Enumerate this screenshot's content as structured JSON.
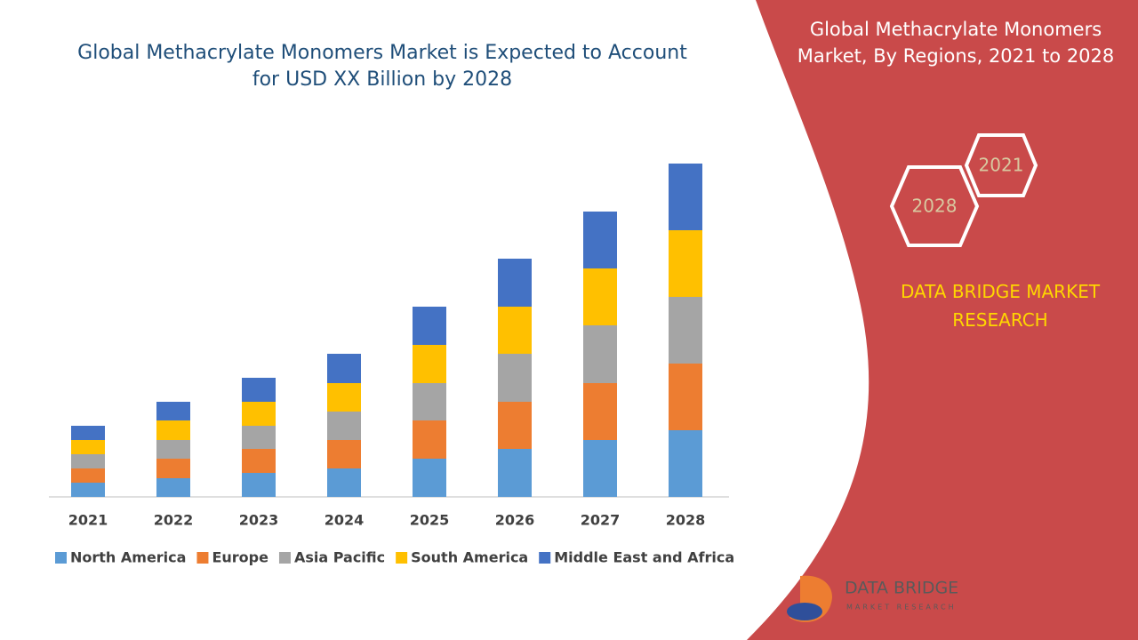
{
  "chart_data": {
    "type": "bar",
    "stacked": true,
    "title": "Global Methacrylate Monomers Market is Expected to Account for USD XX Billion by 2028",
    "categories": [
      "2021",
      "2022",
      "2023",
      "2024",
      "2025",
      "2026",
      "2027",
      "2028"
    ],
    "series": [
      {
        "name": "North America",
        "color": "#5b9bd5",
        "values": [
          16,
          21,
          27,
          32,
          43,
          54,
          64,
          75
        ]
      },
      {
        "name": "Europe",
        "color": "#ed7d31",
        "values": [
          16,
          22,
          27,
          32,
          43,
          53,
          64,
          75
        ]
      },
      {
        "name": "Asia Pacific",
        "color": "#a5a5a5",
        "values": [
          16,
          21,
          26,
          32,
          42,
          54,
          65,
          75
        ]
      },
      {
        "name": "South America",
        "color": "#ffc000",
        "values": [
          16,
          22,
          27,
          32,
          43,
          53,
          64,
          75
        ]
      },
      {
        "name": "Middle East and Africa",
        "color": "#4472c4",
        "values": [
          16,
          21,
          27,
          33,
          43,
          54,
          64,
          75
        ]
      }
    ],
    "ylim": [
      0,
      400
    ],
    "legend": "bottom"
  },
  "side_panel": {
    "title": "Global Methacrylate Monomers Market, By Regions, 2021 to 2028",
    "hexagons": [
      "2021",
      "2028"
    ],
    "brand": "DATA BRIDGE MARKET RESEARCH",
    "logo": {
      "name": "DATA BRIDGE",
      "tagline": "MARKET RESEARCH"
    }
  }
}
